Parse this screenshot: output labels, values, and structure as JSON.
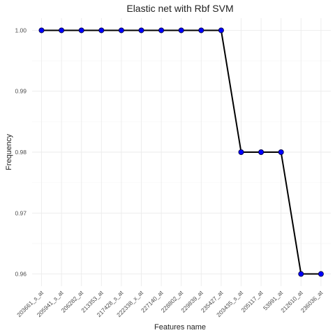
{
  "chart_data": {
    "type": "line",
    "title": "Elastic net  with Rbf SVM",
    "xlabel": "Features name",
    "ylabel": "Frequency",
    "categories": [
      "203661_s_at",
      "205941_s_at",
      "206282_at",
      "213353_at",
      "217428_s_at",
      "222338_x_at",
      "227140_at",
      "228802_at",
      "229839_at",
      "235427_at",
      "203435_s_at",
      "205117_at",
      "53991_at",
      "212610_at",
      "236036_at"
    ],
    "series": [
      {
        "values": [
          1.0,
          1.0,
          1.0,
          1.0,
          1.0,
          1.0,
          1.0,
          1.0,
          1.0,
          1.0,
          0.98,
          0.98,
          0.98,
          0.96,
          0.96
        ]
      }
    ],
    "yticks": [
      0.96,
      0.97,
      0.98,
      0.99,
      1.0
    ],
    "ytick_labels": [
      "0.96",
      "0.97",
      "0.98",
      "0.99",
      "1.00"
    ],
    "ylim": [
      0.958,
      1.002
    ],
    "grid": true,
    "line_color": "#000000",
    "point_color": "#0000ff"
  }
}
